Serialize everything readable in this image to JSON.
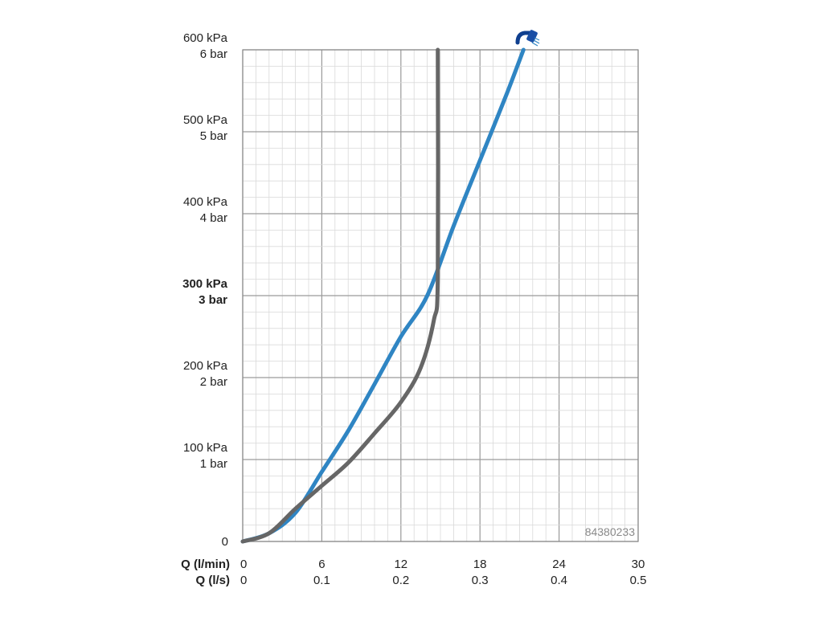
{
  "chart_data": {
    "type": "line",
    "ylim": [
      0,
      600
    ],
    "xlim": [
      0,
      30
    ],
    "grid": true,
    "y_ticks": [
      {
        "value": 0,
        "labels": [
          "0"
        ],
        "bold": false
      },
      {
        "value": 100,
        "labels": [
          "100 kPa",
          "1 bar"
        ],
        "bold": false
      },
      {
        "value": 200,
        "labels": [
          "200 kPa",
          "2 bar"
        ],
        "bold": false
      },
      {
        "value": 300,
        "labels": [
          "300 kPa",
          "3 bar"
        ],
        "bold": true
      },
      {
        "value": 400,
        "labels": [
          "400 kPa",
          "4 bar"
        ],
        "bold": false
      },
      {
        "value": 500,
        "labels": [
          "500 kPa",
          "5 bar"
        ],
        "bold": false
      },
      {
        "value": 600,
        "labels": [
          "600 kPa",
          "6 bar"
        ],
        "bold": false
      }
    ],
    "x_axes": [
      {
        "label": "Q (l/min)",
        "ticks": [
          "0",
          "6",
          "12",
          "18",
          "24",
          "30"
        ]
      },
      {
        "label": "Q (l/s)",
        "ticks": [
          "0",
          "0.1",
          "0.2",
          "0.3",
          "0.4",
          "0.5"
        ]
      }
    ],
    "x_tick_values": [
      0,
      6,
      12,
      18,
      24,
      30
    ],
    "series": [
      {
        "color": "#2f85c3",
        "points": [
          [
            0,
            0
          ],
          [
            2,
            10
          ],
          [
            4,
            35
          ],
          [
            6,
            85
          ],
          [
            8,
            135
          ],
          [
            10,
            192
          ],
          [
            12,
            250
          ],
          [
            14,
            300
          ],
          [
            16,
            385
          ],
          [
            18,
            465
          ],
          [
            20,
            545
          ],
          [
            21.3,
            600
          ]
        ]
      },
      {
        "color": "#666666",
        "points": [
          [
            0,
            0
          ],
          [
            2,
            10
          ],
          [
            4,
            40
          ],
          [
            6,
            68
          ],
          [
            8,
            96
          ],
          [
            10,
            132
          ],
          [
            12,
            170
          ],
          [
            13.5,
            212
          ],
          [
            14.5,
            270
          ],
          [
            14.8,
            322
          ],
          [
            14.8,
            600
          ]
        ]
      }
    ],
    "annotations": [
      "84380233"
    ],
    "icon": "shower-head-icon"
  }
}
